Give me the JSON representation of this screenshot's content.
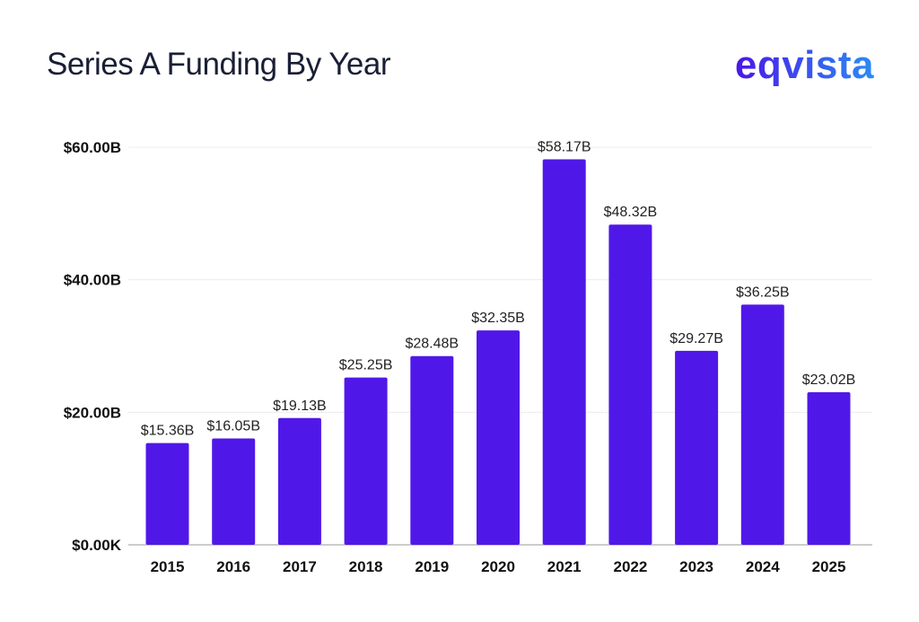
{
  "brand": {
    "logo_text": "eqvista",
    "colors": {
      "gradient_start": "#4b16e8",
      "gradient_end": "#2a8cf5"
    }
  },
  "chart_data": {
    "type": "bar",
    "title": "Series A Funding By Year",
    "xlabel": "",
    "ylabel": "",
    "categories": [
      "2015",
      "2016",
      "2017",
      "2018",
      "2019",
      "2020",
      "2021",
      "2022",
      "2023",
      "2024",
      "2025"
    ],
    "values": [
      15.36,
      16.05,
      19.13,
      25.25,
      28.48,
      32.35,
      58.17,
      48.32,
      29.27,
      36.25,
      23.02
    ],
    "data_labels": [
      "$15.36B",
      "$16.05B",
      "$19.13B",
      "$25.25B",
      "$28.48B",
      "$32.35B",
      "$58.17B",
      "$48.32B",
      "$29.27B",
      "$36.25B",
      "$23.02B"
    ],
    "ylim": [
      0,
      60
    ],
    "yticks": [
      0,
      20,
      40,
      60
    ],
    "ytick_labels": [
      "$0.00K",
      "$20.00B",
      "$40.00B",
      "$60.00B"
    ],
    "grid": true,
    "bar_color": "#5018e8"
  }
}
